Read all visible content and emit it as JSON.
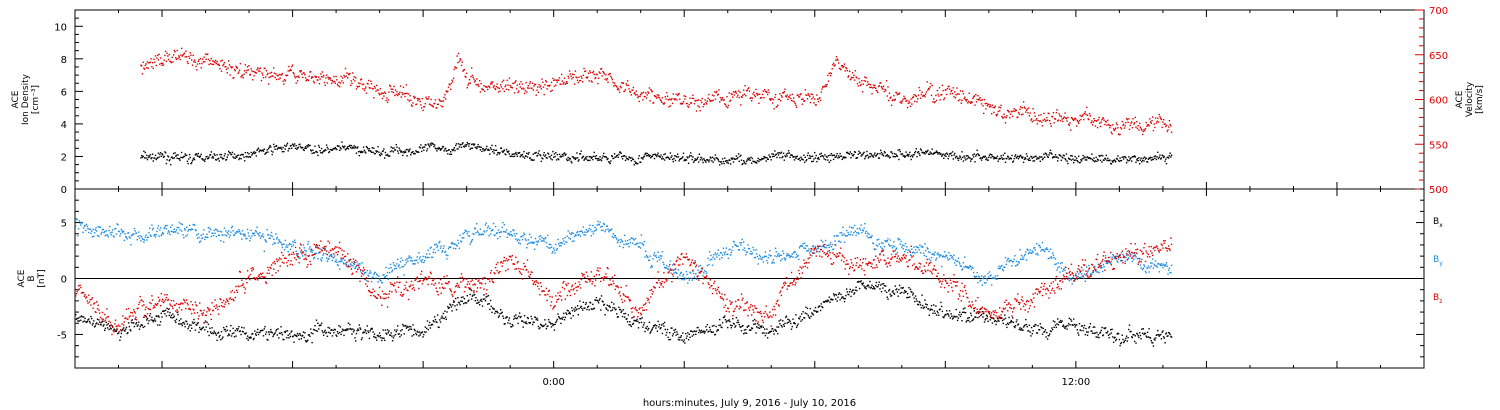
{
  "chart_data": [
    {
      "type": "scatter",
      "panel": "top",
      "xlabel": "hours:minutes, July  9, 2016 - July 10, 2016",
      "x_tick_labels": [
        "0:00",
        "12:00"
      ],
      "x_range_hours": [
        -11,
        20
      ],
      "left_axis": {
        "label_lines": [
          "ACE",
          "Ion Density",
          "[cm⁻³]"
        ],
        "ylim": [
          0,
          11
        ],
        "ticks": [
          0,
          2,
          4,
          6,
          8,
          10
        ],
        "color": "#000000"
      },
      "right_axis": {
        "label_lines": [
          "ACE",
          "Velocity",
          "[km/s]"
        ],
        "ylim": [
          500,
          700
        ],
        "ticks": [
          500,
          550,
          600,
          650,
          700
        ],
        "color": "#dd0000"
      },
      "series": [
        {
          "axis": "left",
          "color": "#000000",
          "x_hours": [
            -9.5,
            -8,
            -6,
            -4,
            -2,
            0,
            2,
            4,
            6,
            8,
            10,
            12,
            14.2
          ],
          "y": [
            2.0,
            1.9,
            2.6,
            2.3,
            2.7,
            1.9,
            2.0,
            1.8,
            2.0,
            2.3,
            2.0,
            1.9,
            2.0
          ],
          "spread": 0.6
        },
        {
          "axis": "right",
          "color": "#dd0000",
          "x_hours": [
            -9.5,
            -8.5,
            -7.5,
            -6.5,
            -5,
            -3.5,
            -2.5,
            -2.2,
            -2,
            -1,
            0,
            1,
            2,
            3,
            4,
            5,
            6,
            6.5,
            7,
            8,
            9,
            10,
            11,
            12,
            13,
            14.2
          ],
          "y": [
            640,
            648,
            635,
            628,
            625,
            605,
            600,
            648,
            625,
            610,
            618,
            635,
            605,
            595,
            605,
            608,
            598,
            640,
            620,
            600,
            610,
            590,
            582,
            577,
            575,
            570
          ],
          "spread": 18
        }
      ]
    },
    {
      "type": "scatter",
      "panel": "bottom",
      "x_tick_labels": [
        "0:00",
        "12:00"
      ],
      "x_range_hours": [
        -11,
        20
      ],
      "left_axis": {
        "label_lines": [
          "ACE",
          "B",
          "[nT]"
        ],
        "ylim": [
          -8,
          8
        ],
        "ticks": [
          -5,
          0,
          5
        ]
      },
      "zero_line": true,
      "series": [
        {
          "name": "Bx",
          "legend": {
            "base": "B",
            "sub": "x"
          },
          "color": "#000000",
          "x_hours": [
            -11,
            -10,
            -9,
            -8,
            -7,
            -6,
            -5,
            -4,
            -3,
            -2,
            -1,
            0,
            1,
            2,
            3,
            4,
            5,
            6,
            7,
            8,
            9,
            10,
            11,
            12,
            13,
            14.2
          ],
          "y": [
            -3.5,
            -4.5,
            -3,
            -4.5,
            -5,
            -5,
            -4.5,
            -5,
            -4.5,
            -1,
            -3.5,
            -4,
            -2,
            -4,
            -5,
            -4,
            -4.5,
            -3,
            -0.5,
            -1,
            -3,
            -3.5,
            -4.5,
            -4,
            -5,
            -5
          ],
          "spread": 1.3
        },
        {
          "name": "By",
          "legend": {
            "base": "B",
            "sub": "y"
          },
          "color": "#1a8ae0",
          "x_hours": [
            -11,
            -10,
            -9,
            -8,
            -7,
            -6,
            -5,
            -4,
            -3,
            -2,
            -1,
            0,
            1,
            2,
            3,
            4,
            5,
            6,
            7,
            8,
            9,
            10,
            11,
            12,
            13,
            14.2
          ],
          "y": [
            5,
            4,
            4.5,
            4,
            4,
            3,
            2,
            0,
            2,
            4,
            4,
            3,
            4.5,
            3,
            0,
            3,
            2,
            3,
            4,
            3,
            2,
            0,
            3,
            0,
            2,
            1
          ],
          "spread": 1.4
        },
        {
          "name": "Bz",
          "legend": {
            "base": "B",
            "sub": "z"
          },
          "color": "#dd0000",
          "x_hours": [
            -11,
            -10,
            -9,
            -8,
            -7,
            -6,
            -5,
            -4,
            -3,
            -2,
            -1,
            0,
            1,
            2,
            3,
            4,
            5,
            6,
            7,
            8,
            9,
            10,
            11,
            12,
            13,
            14.2
          ],
          "y": [
            -1,
            -4,
            -2,
            -3,
            0,
            2,
            3,
            -2,
            0,
            -1,
            2,
            -2,
            1,
            -3,
            2,
            -2,
            -3,
            3,
            1,
            2,
            0,
            -3,
            -2,
            1,
            2,
            3
          ],
          "spread": 1.8
        }
      ]
    }
  ]
}
